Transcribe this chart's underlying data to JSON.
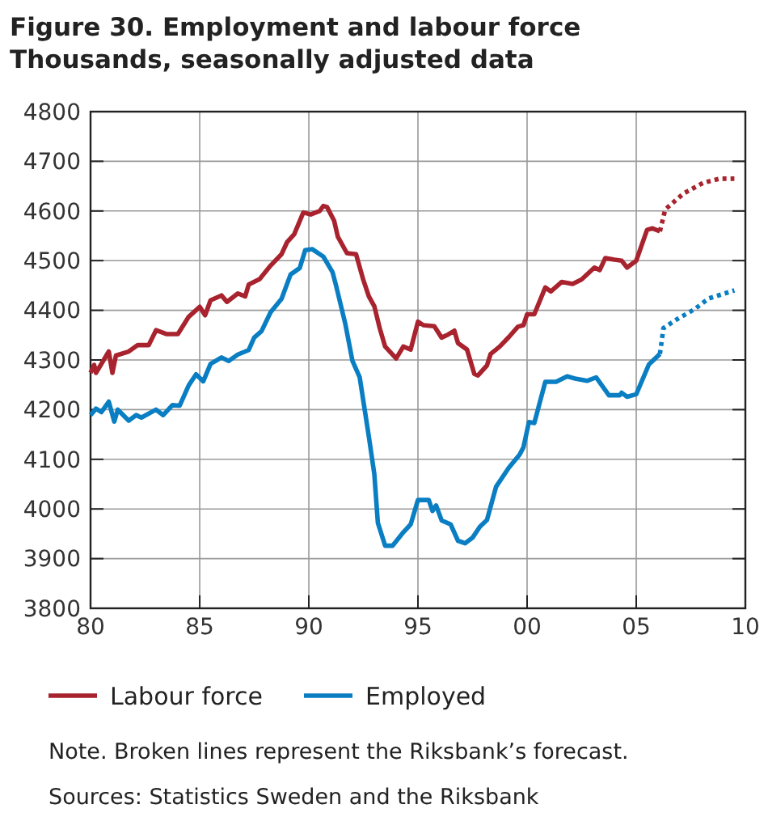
{
  "chart_data": {
    "type": "line",
    "title": "Figure 30. Employment and labour force",
    "subtitle": "Thousands, seasonally adjusted data",
    "xlim": [
      "1980",
      "2010"
    ],
    "xticks": [
      {
        "value": "1980",
        "label": "80"
      },
      {
        "value": "1985",
        "label": "85"
      },
      {
        "value": "1990",
        "label": "90"
      },
      {
        "value": "1995",
        "label": "95"
      },
      {
        "value": "2000",
        "label": "00"
      },
      {
        "value": "2005",
        "label": "05"
      },
      {
        "value": "2010",
        "label": "10"
      }
    ],
    "ylim": [
      3800,
      4800
    ],
    "yticks": [
      3800,
      3900,
      4000,
      4100,
      4200,
      4300,
      4400,
      4500,
      4600,
      4700,
      4800
    ],
    "grid": true,
    "legend": "bottom",
    "line_style": "solid",
    "series": [
      {
        "name": "Labour force",
        "color": "#a8232e",
        "x": [
          "1980-01",
          "1980-03",
          "1980-04",
          "1980-11",
          "1981-01",
          "1981-03",
          "1981-10",
          "1982-03",
          "1982-09",
          "1983-01",
          "1983-07",
          "1984-01",
          "1984-07",
          "1985-01",
          "1985-04",
          "1985-07",
          "1986-01",
          "1986-04",
          "1986-10",
          "1987-02",
          "1987-04",
          "1987-10",
          "1988-04",
          "1988-10",
          "1989-01",
          "1989-05",
          "1989-10",
          "1990-02",
          "1990-07",
          "1990-09",
          "1990-11",
          "1991-03",
          "1991-05",
          "1991-10",
          "1992-03",
          "1992-07",
          "1992-10",
          "1993-01",
          "1993-04",
          "1993-07",
          "1994-01",
          "1994-05",
          "1994-09",
          "1995-01",
          "1995-04",
          "1995-10",
          "1996-02",
          "1996-05",
          "1996-09",
          "1996-11",
          "1997-04",
          "1997-08",
          "1997-10",
          "1998-03",
          "1998-05",
          "1998-10",
          "1999-03",
          "1999-08",
          "1999-11",
          "2000-01",
          "2000-05",
          "2000-11",
          "2001-02",
          "2001-08",
          "2002-02",
          "2002-07",
          "2003-02",
          "2003-05",
          "2003-08",
          "2004-01",
          "2004-05",
          "2004-08",
          "2005-01",
          "2005-07",
          "2005-10",
          "2006-02"
        ],
        "values": [
          4274,
          4290,
          4274,
          4317,
          4274,
          4309,
          4317,
          4330,
          4330,
          4360,
          4352,
          4352,
          4387,
          4407,
          4390,
          4420,
          4430,
          4417,
          4434,
          4428,
          4452,
          4463,
          4490,
          4513,
          4537,
          4553,
          4597,
          4593,
          4600,
          4610,
          4608,
          4580,
          4548,
          4515,
          4513,
          4461,
          4428,
          4408,
          4364,
          4327,
          4303,
          4327,
          4321,
          4377,
          4370,
          4368,
          4345,
          4350,
          4359,
          4334,
          4321,
          4272,
          4269,
          4289,
          4312,
          4327,
          4346,
          4367,
          4370,
          4392,
          4392,
          4446,
          4438,
          4457,
          4453,
          4462,
          4486,
          4481,
          4505,
          4502,
          4500,
          4486,
          4500,
          4562,
          4565,
          4559
        ]
      },
      {
        "color": "#a8232e",
        "line_style": "dotted",
        "x": [
          "2006-02",
          "2006-05",
          "2007-03",
          "2008-02",
          "2008-11",
          "2009-07"
        ],
        "values": [
          4559,
          4603,
          4635,
          4657,
          4665,
          4665
        ]
      },
      {
        "name": "Employed",
        "color": "#0a7ec2",
        "x": [
          "1980-01",
          "1980-04",
          "1980-07",
          "1980-11",
          "1981-02",
          "1981-04",
          "1981-10",
          "1982-02",
          "1982-05",
          "1983-01",
          "1983-05",
          "1983-10",
          "1984-02",
          "1984-07",
          "1984-11",
          "1985-03",
          "1985-07",
          "1986-01",
          "1986-05",
          "1986-10",
          "1987-04",
          "1987-07",
          "1987-11",
          "1988-04",
          "1988-10",
          "1989-03",
          "1989-08",
          "1989-11",
          "1990-03",
          "1990-09",
          "1991-02",
          "1991-04",
          "1991-09",
          "1992-01",
          "1992-05",
          "1992-10",
          "1993-01",
          "1993-03",
          "1993-07",
          "1993-11",
          "1994-05",
          "1994-09",
          "1995-01",
          "1995-07",
          "1995-09",
          "1995-11",
          "1996-02",
          "1996-07",
          "1996-11",
          "1997-03",
          "1997-07",
          "1997-11",
          "1998-03",
          "1998-08",
          "1999-03",
          "1999-09",
          "1999-11",
          "2000-02",
          "2000-05",
          "2000-11",
          "2001-05",
          "2001-11",
          "2002-04",
          "2002-10",
          "2003-03",
          "2003-10",
          "2004-04",
          "2004-05",
          "2004-08",
          "2005-01",
          "2005-08",
          "2006-02"
        ],
        "values": [
          4189,
          4202,
          4195,
          4216,
          4176,
          4200,
          4178,
          4189,
          4184,
          4200,
          4189,
          4209,
          4208,
          4249,
          4271,
          4257,
          4292,
          4305,
          4298,
          4311,
          4320,
          4345,
          4358,
          4396,
          4423,
          4472,
          4485,
          4521,
          4523,
          4508,
          4477,
          4450,
          4374,
          4298,
          4265,
          4146,
          4070,
          3972,
          3926,
          3926,
          3953,
          3969,
          4018,
          4018,
          3996,
          4007,
          3977,
          3969,
          3936,
          3931,
          3942,
          3964,
          3978,
          4045,
          4083,
          4110,
          4124,
          4175,
          4173,
          4256,
          4256,
          4267,
          4262,
          4258,
          4265,
          4229,
          4229,
          4234,
          4226,
          4231,
          4291,
          4312
        ]
      },
      {
        "color": "#0a7ec2",
        "line_style": "dotted",
        "x": [
          "2006-02",
          "2006-04",
          "2006-11",
          "2007-09",
          "2008-05",
          "2009-07"
        ],
        "values": [
          4312,
          4364,
          4381,
          4402,
          4424,
          4440
        ]
      }
    ],
    "annotations": [
      "Note. Broken lines represent the Riksbank’s forecast.",
      "Sources: Statistics Sweden and the Riksbank"
    ]
  }
}
